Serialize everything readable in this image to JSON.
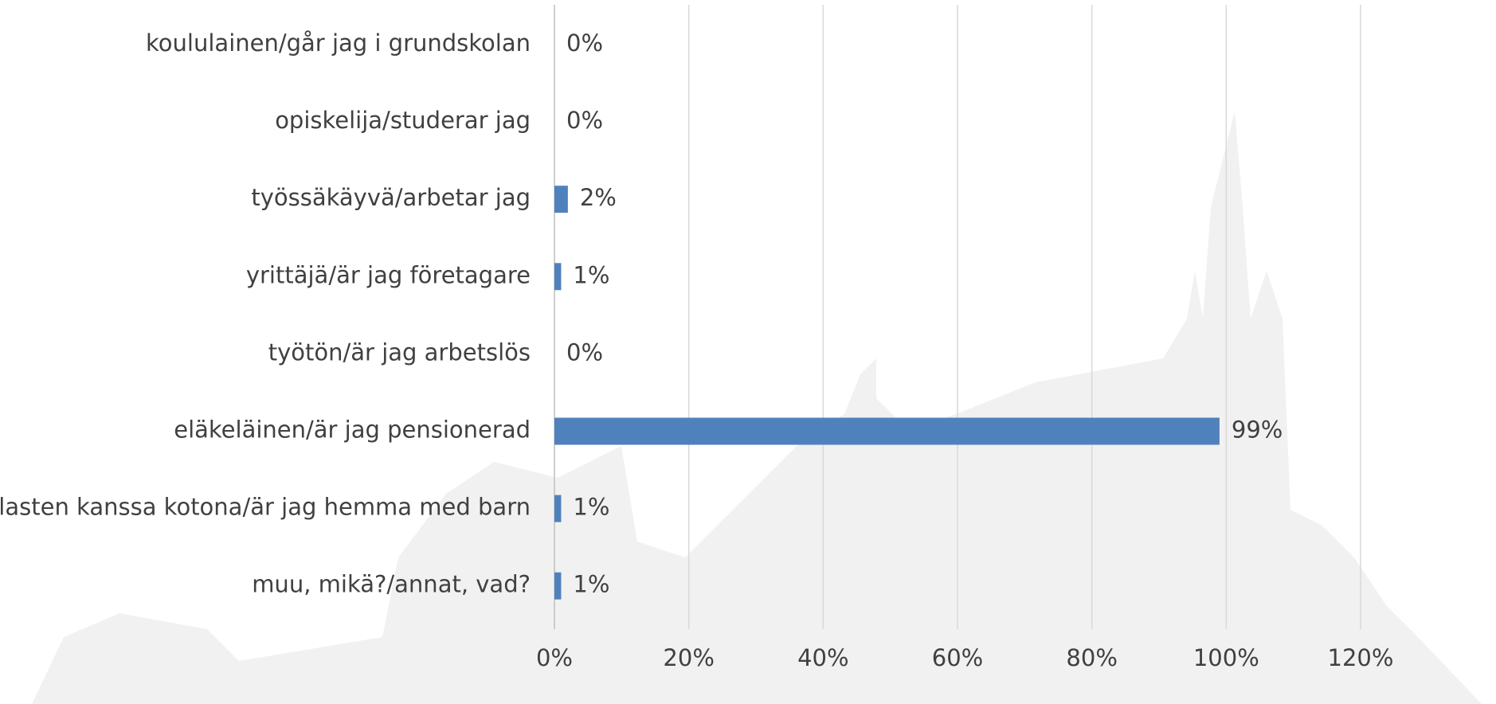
{
  "chart_data": {
    "type": "bar",
    "orientation": "horizontal",
    "categories": [
      "koululainen/går jag i grundskolan",
      "opiskelija/studerar jag",
      "työssäkäyvä/arbetar jag",
      "yrittäjä/är jag företagare",
      "työtön/är jag arbetslös",
      "eläkeläinen/är jag pensionerad",
      "lasten kanssa kotona/är jag hemma med barn",
      "muu, mikä?/annat, vad?"
    ],
    "values": [
      0,
      0,
      2,
      1,
      0,
      99,
      1,
      1
    ],
    "value_labels": [
      "0%",
      "0%",
      "2%",
      "1%",
      "0%",
      "99%",
      "1%",
      "1%"
    ],
    "color": "#4f81bd",
    "xlim": [
      0,
      120
    ],
    "xticks": [
      {
        "value": 0,
        "label": "0%"
      },
      {
        "value": 20,
        "label": "20%"
      },
      {
        "value": 40,
        "label": "40%"
      },
      {
        "value": 60,
        "label": "60%"
      },
      {
        "value": 80,
        "label": "80%"
      },
      {
        "value": 100,
        "label": "100%"
      },
      {
        "value": 120,
        "label": "120%"
      }
    ],
    "grid": true
  }
}
